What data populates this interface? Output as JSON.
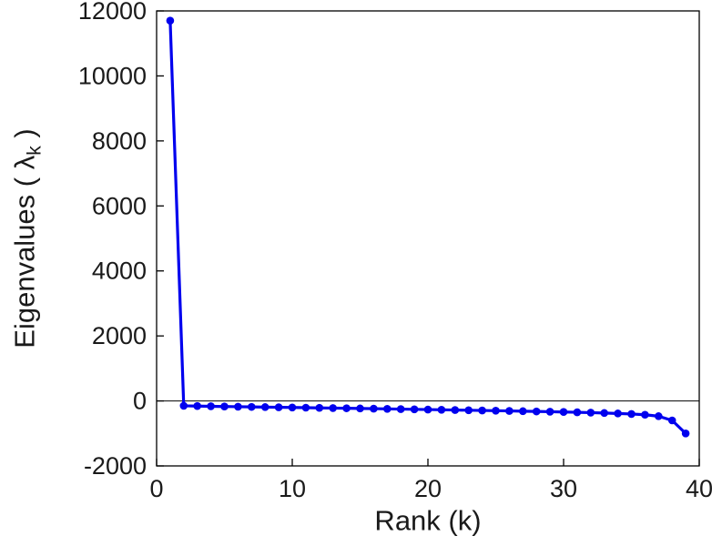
{
  "figure": {
    "background": "#ffffff",
    "axis_color": "#000000",
    "tick_label_color": "#1a1a1a"
  },
  "labels": {
    "ylabel_prefix": "Eigenvalues ( ",
    "ylabel_lambda": "λ",
    "ylabel_sub": "k",
    "ylabel_suffix": " )",
    "xlabel": "Rank (k)"
  },
  "chart_data": {
    "type": "line",
    "title": "",
    "xlabel": "Rank (k)",
    "ylabel": "Eigenvalues ( lambda_k )",
    "xlim": [
      0,
      40
    ],
    "ylim": [
      -2000,
      12000
    ],
    "xticks": [
      0,
      10,
      20,
      30,
      40
    ],
    "yticks": [
      -2000,
      0,
      2000,
      4000,
      6000,
      8000,
      10000,
      12000
    ],
    "grid": false,
    "zero_line": true,
    "legend": "none",
    "series": [
      {
        "name": "eigenvalues",
        "color": "#0000ee",
        "marker": "circle",
        "x": [
          1,
          2,
          3,
          4,
          5,
          6,
          7,
          8,
          9,
          10,
          11,
          12,
          13,
          14,
          15,
          16,
          17,
          18,
          19,
          20,
          21,
          22,
          23,
          24,
          25,
          26,
          27,
          28,
          29,
          30,
          31,
          32,
          33,
          34,
          35,
          36,
          37,
          38,
          39
        ],
        "y": [
          11700,
          -150,
          -158,
          -165,
          -172,
          -178,
          -184,
          -190,
          -196,
          -202,
          -208,
          -214,
          -220,
          -226,
          -232,
          -238,
          -245,
          -252,
          -259,
          -266,
          -273,
          -280,
          -287,
          -294,
          -301,
          -308,
          -316,
          -324,
          -332,
          -340,
          -350,
          -360,
          -372,
          -386,
          -402,
          -425,
          -470,
          -600,
          -1000
        ]
      }
    ]
  }
}
